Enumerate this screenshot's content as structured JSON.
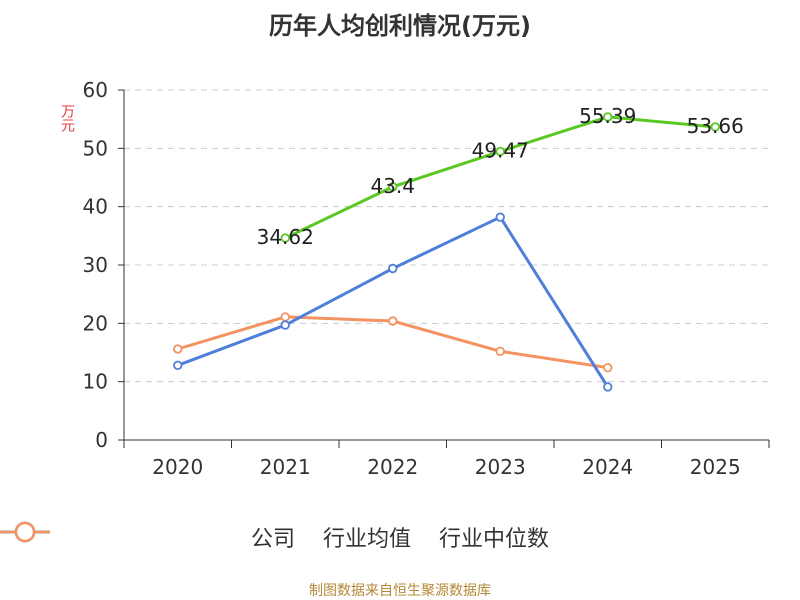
{
  "chart_data": {
    "type": "line",
    "title": "历年人均创利情况(万元)",
    "ylabel": "万元",
    "categories": [
      "2020",
      "2021",
      "2022",
      "2023",
      "2024",
      "2025"
    ],
    "ylim": [
      0,
      60
    ],
    "yticks": [
      0,
      10,
      20,
      30,
      40,
      50,
      60
    ],
    "grid": true,
    "legend_position": "bottom",
    "series": [
      {
        "name": "公司",
        "color": "#5ac823",
        "values": [
          null,
          34.62,
          43.4,
          49.47,
          55.39,
          53.66
        ],
        "labels": [
          "",
          "34.62",
          "43.4",
          "49.47",
          "55.39",
          "53.66"
        ]
      },
      {
        "name": "行业均值",
        "color": "#4f7fd9",
        "values": [
          12.8,
          19.7,
          29.4,
          38.2,
          9.1,
          null
        ]
      },
      {
        "name": "行业中位数",
        "color": "#f39362",
        "values": [
          15.6,
          21.1,
          20.4,
          15.2,
          12.4,
          null
        ]
      }
    ]
  },
  "source": "制图数据来自恒生聚源数据库"
}
